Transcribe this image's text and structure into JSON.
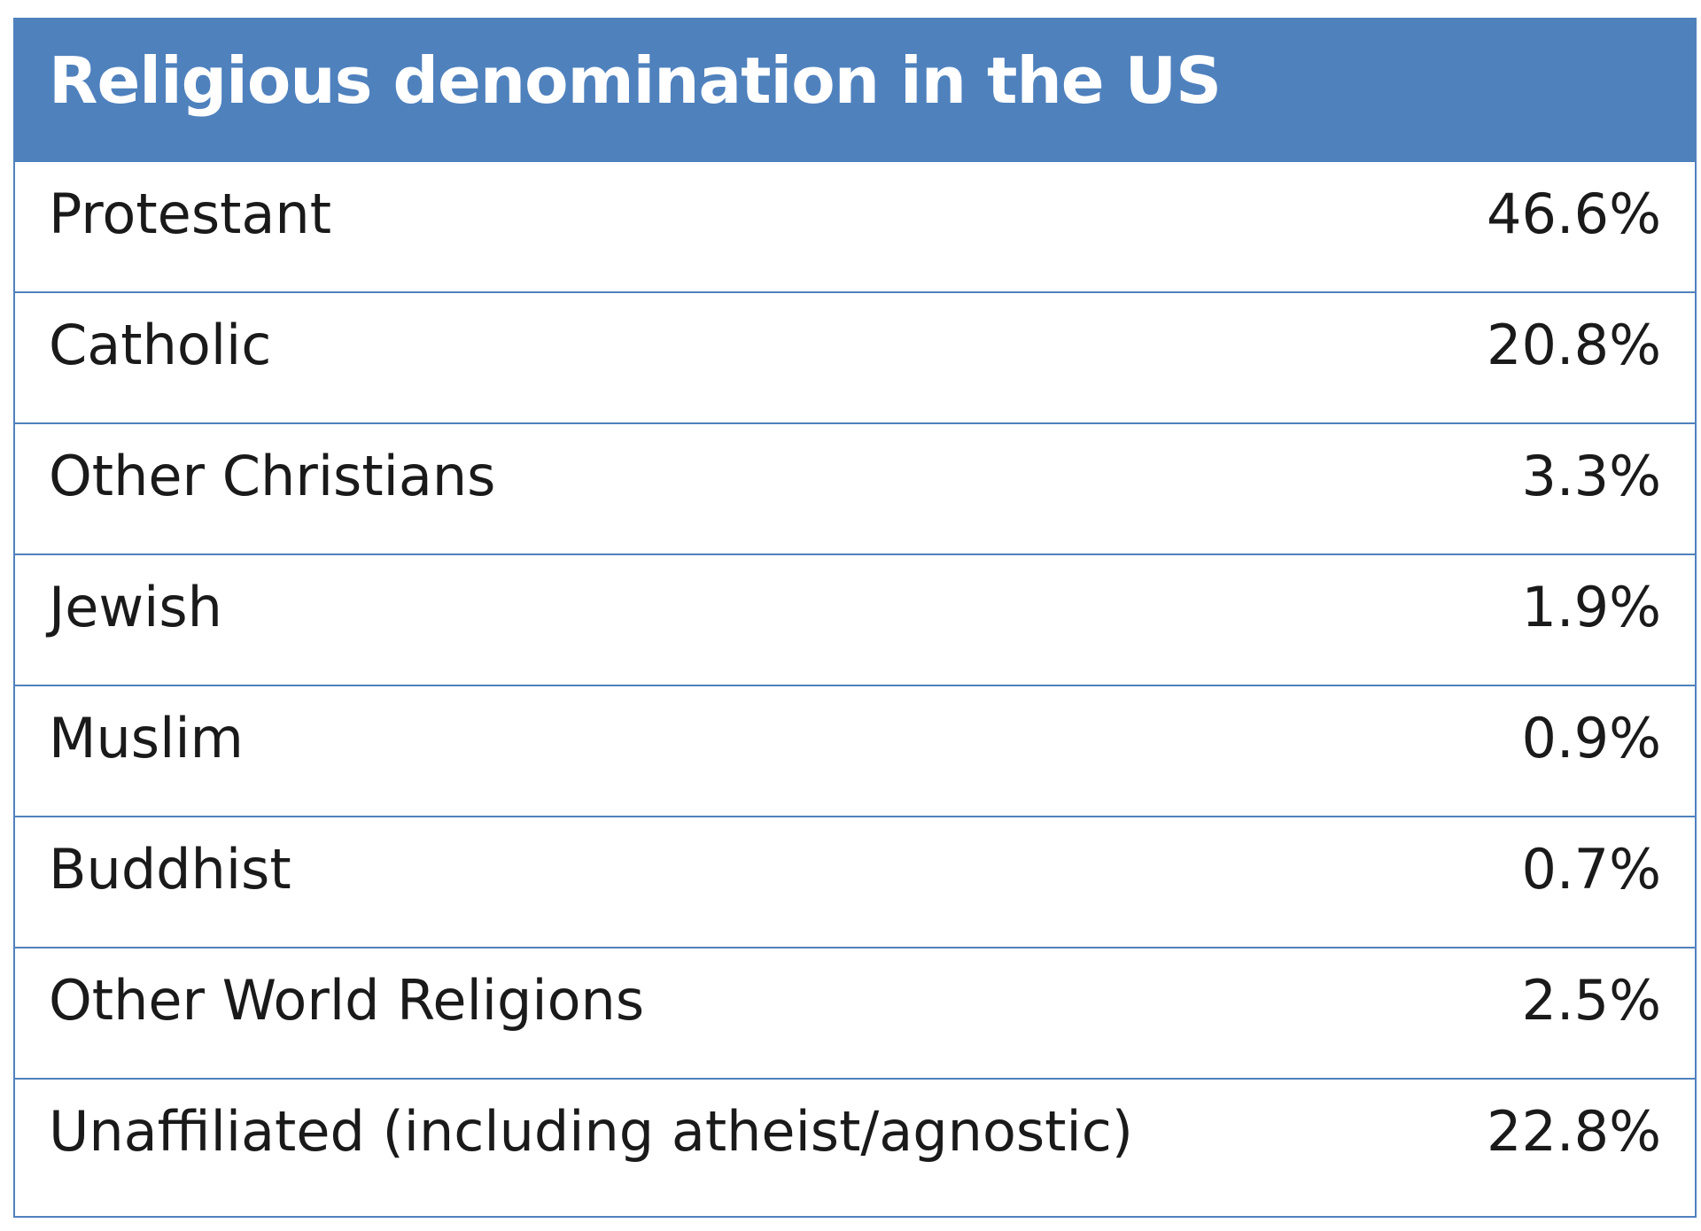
{
  "chart_data": {
    "type": "table",
    "title": "Religious denomination in the US",
    "colors": {
      "header_bg": "#4f81bd",
      "header_text": "#ffffff",
      "border": "#4f81bd",
      "cell_text": "#1a1a1a"
    },
    "rows": [
      {
        "label": "Protestant",
        "value": "46.6%"
      },
      {
        "label": "Catholic",
        "value": "20.8%"
      },
      {
        "label": "Other Christians",
        "value": "3.3%"
      },
      {
        "label": "Jewish",
        "value": "1.9%"
      },
      {
        "label": "Muslim",
        "value": "0.9%"
      },
      {
        "label": "Buddhist",
        "value": "0.7%"
      },
      {
        "label": "Other World Religions",
        "value": "2.5%"
      },
      {
        "label": "Unaffiliated (including atheist/agnostic)",
        "value": "22.8%"
      }
    ]
  }
}
